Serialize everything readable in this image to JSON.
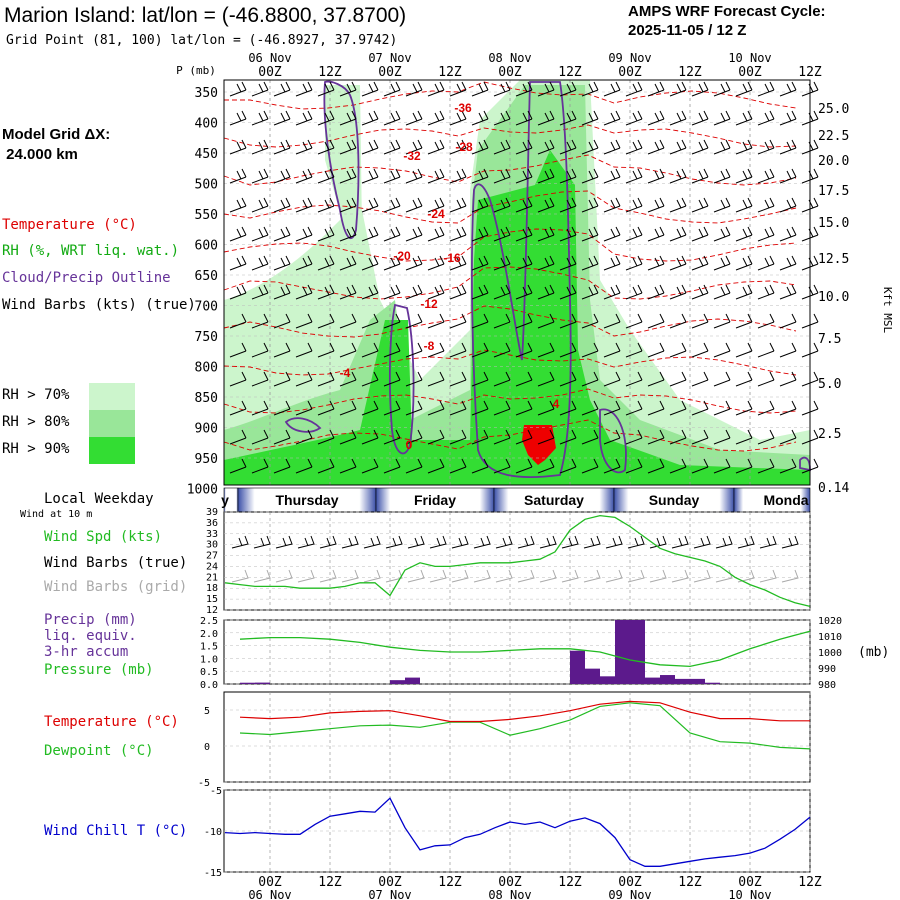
{
  "header": {
    "title": "Marion Island:  lat/lon = (-46.8800, 37.8700)",
    "grid_point": "Grid Point (81, 100) lat/lon = (-46.8927, 37.9742)",
    "cycle_line1": "AMPS WRF Forecast Cycle:",
    "cycle_line2": "2025-11-05 / 12  Z"
  },
  "legend": {
    "model_grid_label": "Model Grid ΔX:",
    "model_grid_value": " 24.000 km",
    "temperature": "Temperature (°C)",
    "rh": "RH (%, WRT liq. wat.)",
    "cloud": "Cloud/Precip Outline",
    "wind_barbs": "Wind Barbs (kts) (true)",
    "rh70": "RH > 70%",
    "rh80": "RH > 80%",
    "rh90": "RH > 90%",
    "local_weekday": "Local Weekday",
    "wind_10m": "Wind at 10 m",
    "wind_spd": "Wind Spd (kts)",
    "wind_barbs_true": "Wind Barbs (true)",
    "wind_barbs_grid": "Wind Barbs (grid)",
    "precip1": "Precip (mm)",
    "precip2": "liq. equiv.",
    "precip3": "3-hr accum",
    "pressure": "Pressure (mb)",
    "temperature2": "Temperature (°C)",
    "dewpoint": "Dewpoint (°C)",
    "wind_chill": "Wind Chill T (°C)",
    "p_unit": "P (mb)",
    "kft": "Kft MSL",
    "mb_unit": "(mb)"
  },
  "colors": {
    "temperature": "#dd0000",
    "rh_text": "#11aa11",
    "cloud": "#663399",
    "rh70": "#ccf5cc",
    "rh80": "#99e699",
    "rh90": "#33dd33",
    "precip": "#5c1a8c",
    "pressure": "#22bb22",
    "windchill": "#0000cc",
    "grid_barbs": "#aaaaaa"
  },
  "time_axis": {
    "hours": [
      0,
      12,
      24,
      36,
      48,
      60,
      72,
      84,
      96,
      108,
      120
    ],
    "top_ticks": [
      "00Z",
      "12Z",
      "00Z",
      "12Z",
      "00Z",
      "12Z",
      "00Z",
      "12Z",
      "00Z",
      "12Z"
    ],
    "top_dates": [
      "06 Nov",
      "07 Nov",
      "08 Nov",
      "09 Nov",
      "10 Nov"
    ],
    "bottom_ticks": [
      "00Z",
      "12Z",
      "00Z",
      "12Z",
      "00Z",
      "12Z",
      "00Z",
      "12Z",
      "00Z",
      "12Z"
    ],
    "bottom_dates": [
      "06 Nov",
      "07 Nov",
      "08 Nov",
      "09 Nov",
      "10 Nov"
    ],
    "weekdays": [
      "y",
      "Thursday",
      "Friday",
      "Saturday",
      "Sunday",
      "Monda"
    ]
  },
  "chart_data": [
    {
      "type": "heatmap",
      "title": "Vertical cross-section",
      "ylabel": "P (mb)",
      "y2label": "Kft MSL",
      "xlim_hours": [
        -12,
        108
      ],
      "pressure_ticks": [
        "350",
        "400",
        "450",
        "500",
        "550",
        "600",
        "650",
        "700",
        "750",
        "800",
        "850",
        "900",
        "950",
        "1000"
      ],
      "height_ticks": [
        "25.0",
        "22.5",
        "20.0",
        "17.5",
        "15.0",
        "12.5",
        "10.0",
        "7.5",
        "5.0",
        "2.5",
        "0.14"
      ],
      "temperature_labels": [
        "-36",
        "-32",
        "-28",
        "-24",
        "-20",
        "-16",
        "-12",
        "-8",
        "-4",
        "0",
        "4"
      ]
    },
    {
      "type": "line",
      "title": "10 m wind",
      "ylabel": "Wind Spd (kts)",
      "ylim": [
        12,
        39
      ],
      "yticks": [
        "39",
        "36",
        "33",
        "30",
        "27",
        "24",
        "21",
        "18",
        "15",
        "12"
      ],
      "x": [
        -12,
        -9,
        -6,
        -3,
        0,
        3,
        6,
        9,
        12,
        15,
        18,
        21,
        24,
        27,
        30,
        33,
        36,
        39,
        42,
        45,
        48,
        51,
        54,
        57,
        60,
        63,
        66,
        69,
        72,
        75,
        78,
        81,
        84,
        87,
        90,
        93,
        96,
        99,
        102,
        105,
        108
      ],
      "series": [
        {
          "name": "Wind Spd",
          "values": [
            21,
            19.5,
            19,
            18.5,
            18.5,
            18.5,
            18,
            18,
            18,
            18.5,
            19.5,
            19.5,
            16,
            23,
            25,
            24,
            24,
            24.5,
            25,
            25,
            25,
            25.5,
            26,
            28,
            34,
            37,
            38,
            37.5,
            35,
            32,
            29,
            27.5,
            26.5,
            25.5,
            24,
            21,
            19,
            17.5,
            15.5,
            14,
            13
          ]
        }
      ]
    },
    {
      "type": "bar",
      "title": "3-hr precip and pressure",
      "ylabel": "Precip (mm)",
      "ylim": [
        0,
        2.5
      ],
      "yticks": [
        "2.5",
        "2.0",
        "1.5",
        "1.0",
        "0.5",
        "0.0"
      ],
      "y2ticks": [
        "1020",
        "1010",
        "1000",
        "990",
        "980"
      ],
      "bars": [
        {
          "t": 0,
          "v": 0.05
        },
        {
          "t": 3,
          "v": 0.05
        },
        {
          "t": 3,
          "v": 0.05
        },
        {
          "t": 30,
          "v": 0.15
        },
        {
          "t": 33,
          "v": 0.25
        },
        {
          "t": 66,
          "v": 1.3
        },
        {
          "t": 69,
          "v": 0.6
        },
        {
          "t": 72,
          "v": 0.3
        },
        {
          "t": 75,
          "v": 2.5
        },
        {
          "t": 78,
          "v": 2.5
        },
        {
          "t": 81,
          "v": 0.25
        },
        {
          "t": 84,
          "v": 0.35
        },
        {
          "t": 87,
          "v": 0.2
        },
        {
          "t": 90,
          "v": 0.2
        },
        {
          "t": 93,
          "v": 0.05
        }
      ],
      "pressure_x": [
        -12,
        -6,
        0,
        6,
        12,
        18,
        24,
        30,
        36,
        42,
        48,
        54,
        60,
        66,
        72,
        78,
        84,
        90,
        96,
        102,
        108,
        114,
        120,
        126,
        132,
        138,
        144
      ],
      "pressure": [
        1008,
        1008,
        1009,
        1009,
        1008,
        1006,
        1003,
        1001,
        1000,
        1000,
        1001,
        1002,
        1002,
        1000,
        995,
        992,
        991,
        995,
        1002,
        1008,
        1013,
        1016,
        1018,
        1019,
        1020,
        1020,
        1020
      ]
    },
    {
      "type": "line",
      "title": "Temperature and dewpoint",
      "ylim": [
        -5,
        7.5
      ],
      "yticks": [
        "5",
        "0",
        "-5"
      ],
      "x": [
        -12,
        -6,
        0,
        6,
        12,
        18,
        24,
        30,
        36,
        42,
        48,
        54,
        60,
        66,
        72,
        78,
        84,
        90,
        96,
        102,
        108,
        114,
        120,
        126,
        132,
        138,
        144
      ],
      "series": [
        {
          "name": "Temperature",
          "values": [
            5,
            4,
            3.8,
            4,
            4.6,
            4.8,
            4.9,
            4.2,
            3.4,
            3.4,
            3.7,
            4.2,
            4.9,
            5.8,
            6.2,
            6,
            4.7,
            3.8,
            3.8,
            3.5,
            3.5,
            3.6,
            3.8,
            3.6,
            3.4,
            3.3,
            2.9
          ]
        },
        {
          "name": "Dewpoint",
          "values": [
            2.5,
            1.8,
            1.6,
            2,
            2.4,
            2.8,
            2.9,
            2.6,
            3.3,
            3.3,
            1.5,
            2.4,
            3.6,
            5.5,
            6,
            5.6,
            1.8,
            0.6,
            0.4,
            -0.2,
            -0.4,
            -0.8,
            -1.2,
            -1.3,
            -1.4,
            -1.3,
            -0.2
          ]
        }
      ]
    },
    {
      "type": "line",
      "title": "Wind chill",
      "ylim": [
        -15,
        -5
      ],
      "yticks": [
        "-5",
        "-10",
        "-15"
      ],
      "x": [
        -12,
        -9,
        -6,
        -3,
        0,
        3,
        6,
        9,
        12,
        15,
        18,
        21,
        24,
        27,
        30,
        33,
        36,
        39,
        42,
        45,
        48,
        51,
        54,
        57,
        60,
        63,
        66,
        69,
        72,
        75,
        78,
        81,
        84,
        87,
        90,
        93,
        96,
        99,
        102,
        105,
        108
      ],
      "series": [
        {
          "name": "Wind Chill T",
          "values": [
            -9.7,
            -10.2,
            -10.3,
            -10.2,
            -10.3,
            -10.4,
            -10.4,
            -9.2,
            -8.2,
            -7.9,
            -7.6,
            -7.7,
            -6,
            -9.6,
            -12.3,
            -11.8,
            -11.7,
            -10.8,
            -10.4,
            -9.6,
            -8.9,
            -9.2,
            -8.9,
            -9.6,
            -8.8,
            -8.4,
            -9.1,
            -10.8,
            -13.5,
            -14.3,
            -14.3,
            -14,
            -13.7,
            -13.4,
            -13.2,
            -13,
            -12.7,
            -12.1,
            -11,
            -9.8,
            -8.3
          ]
        }
      ]
    }
  ]
}
